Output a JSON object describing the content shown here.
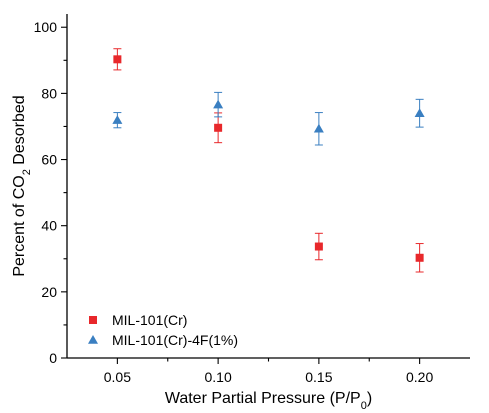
{
  "chart_data": {
    "type": "scatter",
    "xlabel_main": "Water Partial Pressure (P/P",
    "xlabel_sub": "0",
    "xlabel_end": ")",
    "ylabel_main": "Percent of CO",
    "ylabel_sub": "2",
    "ylabel_end": " Desorbed",
    "xlim": [
      0.025,
      0.225
    ],
    "ylim": [
      0,
      104
    ],
    "xticks": [
      0.05,
      0.1,
      0.15,
      0.2
    ],
    "xtick_labels": [
      "0.05",
      "0.10",
      "0.15",
      "0.20"
    ],
    "yticks": [
      0,
      20,
      40,
      60,
      80,
      100
    ],
    "ytick_labels": [
      "0",
      "20",
      "40",
      "60",
      "80",
      "100"
    ],
    "grid": false,
    "legend_position": "bottom-left",
    "series": [
      {
        "name": "MIL-101(Cr)",
        "marker": "square",
        "color": "#e8282b",
        "x": [
          0.05,
          0.1,
          0.15,
          0.2
        ],
        "y": [
          90.3,
          69.6,
          33.7,
          30.3
        ],
        "err": [
          3.2,
          4.5,
          4.0,
          4.3
        ]
      },
      {
        "name": "MIL-101(Cr)-4F(1%)",
        "marker": "triangle",
        "color": "#3a7fc1",
        "x": [
          0.05,
          0.1,
          0.15,
          0.2
        ],
        "y": [
          71.9,
          76.6,
          69.3,
          74.0
        ],
        "err": [
          2.3,
          3.7,
          4.9,
          4.2
        ]
      }
    ]
  }
}
